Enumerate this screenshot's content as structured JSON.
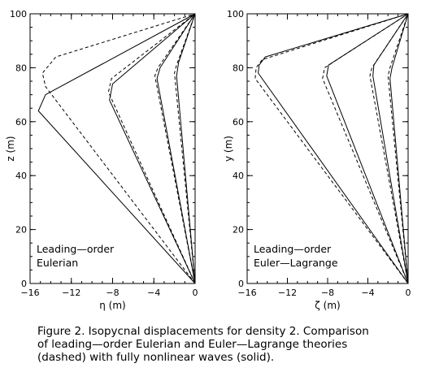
{
  "caption": "Figure 2. Isopycnal displacements for density 2. Comparison\nof leading—order Eulerian and Euler—Lagrange theories\n(dashed) with fully nonlinear waves (solid).",
  "chart_data": [
    {
      "type": "line",
      "xlabel": "η (m)",
      "ylabel": "z (m)",
      "xlim": [
        -16,
        0
      ],
      "ylim": [
        0,
        100
      ],
      "xticks": [
        -16,
        -12,
        -8,
        -4,
        0
      ],
      "xtick_labels": [
        "−16",
        "−12",
        "−8",
        "−4",
        "0"
      ],
      "yticks": [
        0,
        20,
        40,
        60,
        80,
        100
      ],
      "yminor_step": 5,
      "annotation": [
        "Leading—order",
        "Eulerian"
      ],
      "series": [
        {
          "style": "solid",
          "points": [
            [
              0,
              0
            ],
            [
              -15.2,
              64
            ],
            [
              -14.5,
              70
            ],
            [
              0,
              100
            ]
          ]
        },
        {
          "style": "dashed",
          "points": [
            [
              0,
              0
            ],
            [
              -14.5,
              73
            ],
            [
              -14.8,
              78
            ],
            [
              -13.5,
              84
            ],
            [
              0,
              100
            ]
          ]
        },
        {
          "style": "solid",
          "points": [
            [
              0,
              0
            ],
            [
              -8.3,
              68
            ],
            [
              -8.0,
              74
            ],
            [
              0,
              100
            ]
          ]
        },
        {
          "style": "dashed",
          "points": [
            [
              0,
              0
            ],
            [
              -8.4,
              71
            ],
            [
              -8.1,
              76
            ],
            [
              0,
              100
            ]
          ]
        },
        {
          "style": "solid",
          "points": [
            [
              0,
              0
            ],
            [
              -3.7,
              76
            ],
            [
              -3.4,
              80
            ],
            [
              0,
              100
            ]
          ]
        },
        {
          "style": "dashed",
          "points": [
            [
              0,
              0
            ],
            [
              -3.9,
              77
            ],
            [
              -3.6,
              80
            ],
            [
              0,
              100
            ]
          ]
        },
        {
          "style": "solid",
          "points": [
            [
              0,
              0
            ],
            [
              -1.8,
              77
            ],
            [
              -1.6,
              82
            ],
            [
              0,
              100
            ]
          ]
        },
        {
          "style": "dashed",
          "points": [
            [
              0,
              0
            ],
            [
              -2.0,
              78
            ],
            [
              -1.8,
              81
            ],
            [
              0,
              100
            ]
          ]
        }
      ]
    },
    {
      "type": "line",
      "xlabel": "ζ (m)",
      "ylabel": "y (m)",
      "xlim": [
        -16,
        0
      ],
      "ylim": [
        0,
        100
      ],
      "xticks": [
        -16,
        -12,
        -8,
        -4,
        0
      ],
      "xtick_labels": [
        "−16",
        "−12",
        "−8",
        "−4",
        "0"
      ],
      "yticks": [
        0,
        20,
        40,
        60,
        80,
        100
      ],
      "yminor_step": 5,
      "annotation": [
        "Leading—order",
        "Euler—Lagrange"
      ],
      "series": [
        {
          "style": "solid",
          "points": [
            [
              0,
              0
            ],
            [
              -14.9,
              78
            ],
            [
              -14.8,
              81
            ],
            [
              -14.2,
              84
            ],
            [
              0,
              100
            ]
          ]
        },
        {
          "style": "dashed",
          "points": [
            [
              0,
              0
            ],
            [
              -15.2,
              76
            ],
            [
              -15.1,
              80
            ],
            [
              -14.5,
              83
            ],
            [
              0,
              100
            ]
          ]
        },
        {
          "style": "solid",
          "points": [
            [
              0,
              0
            ],
            [
              -8.1,
              77
            ],
            [
              -7.9,
              81
            ],
            [
              0,
              100
            ]
          ]
        },
        {
          "style": "dashed",
          "points": [
            [
              0,
              0
            ],
            [
              -8.5,
              76
            ],
            [
              -8.3,
              80
            ],
            [
              0,
              100
            ]
          ]
        },
        {
          "style": "solid",
          "points": [
            [
              0,
              0
            ],
            [
              -3.5,
              77
            ],
            [
              -3.4,
              81
            ],
            [
              0,
              100
            ]
          ]
        },
        {
          "style": "dashed",
          "points": [
            [
              0,
              0
            ],
            [
              -3.8,
              77
            ],
            [
              -3.6,
              80
            ],
            [
              0,
              100
            ]
          ]
        },
        {
          "style": "solid",
          "points": [
            [
              0,
              0
            ],
            [
              -1.8,
              76
            ],
            [
              -1.6,
              80
            ],
            [
              0,
              100
            ]
          ]
        },
        {
          "style": "dashed",
          "points": [
            [
              0,
              0
            ],
            [
              -2.0,
              77
            ],
            [
              -1.8,
              80
            ],
            [
              0,
              100
            ]
          ]
        }
      ]
    }
  ]
}
